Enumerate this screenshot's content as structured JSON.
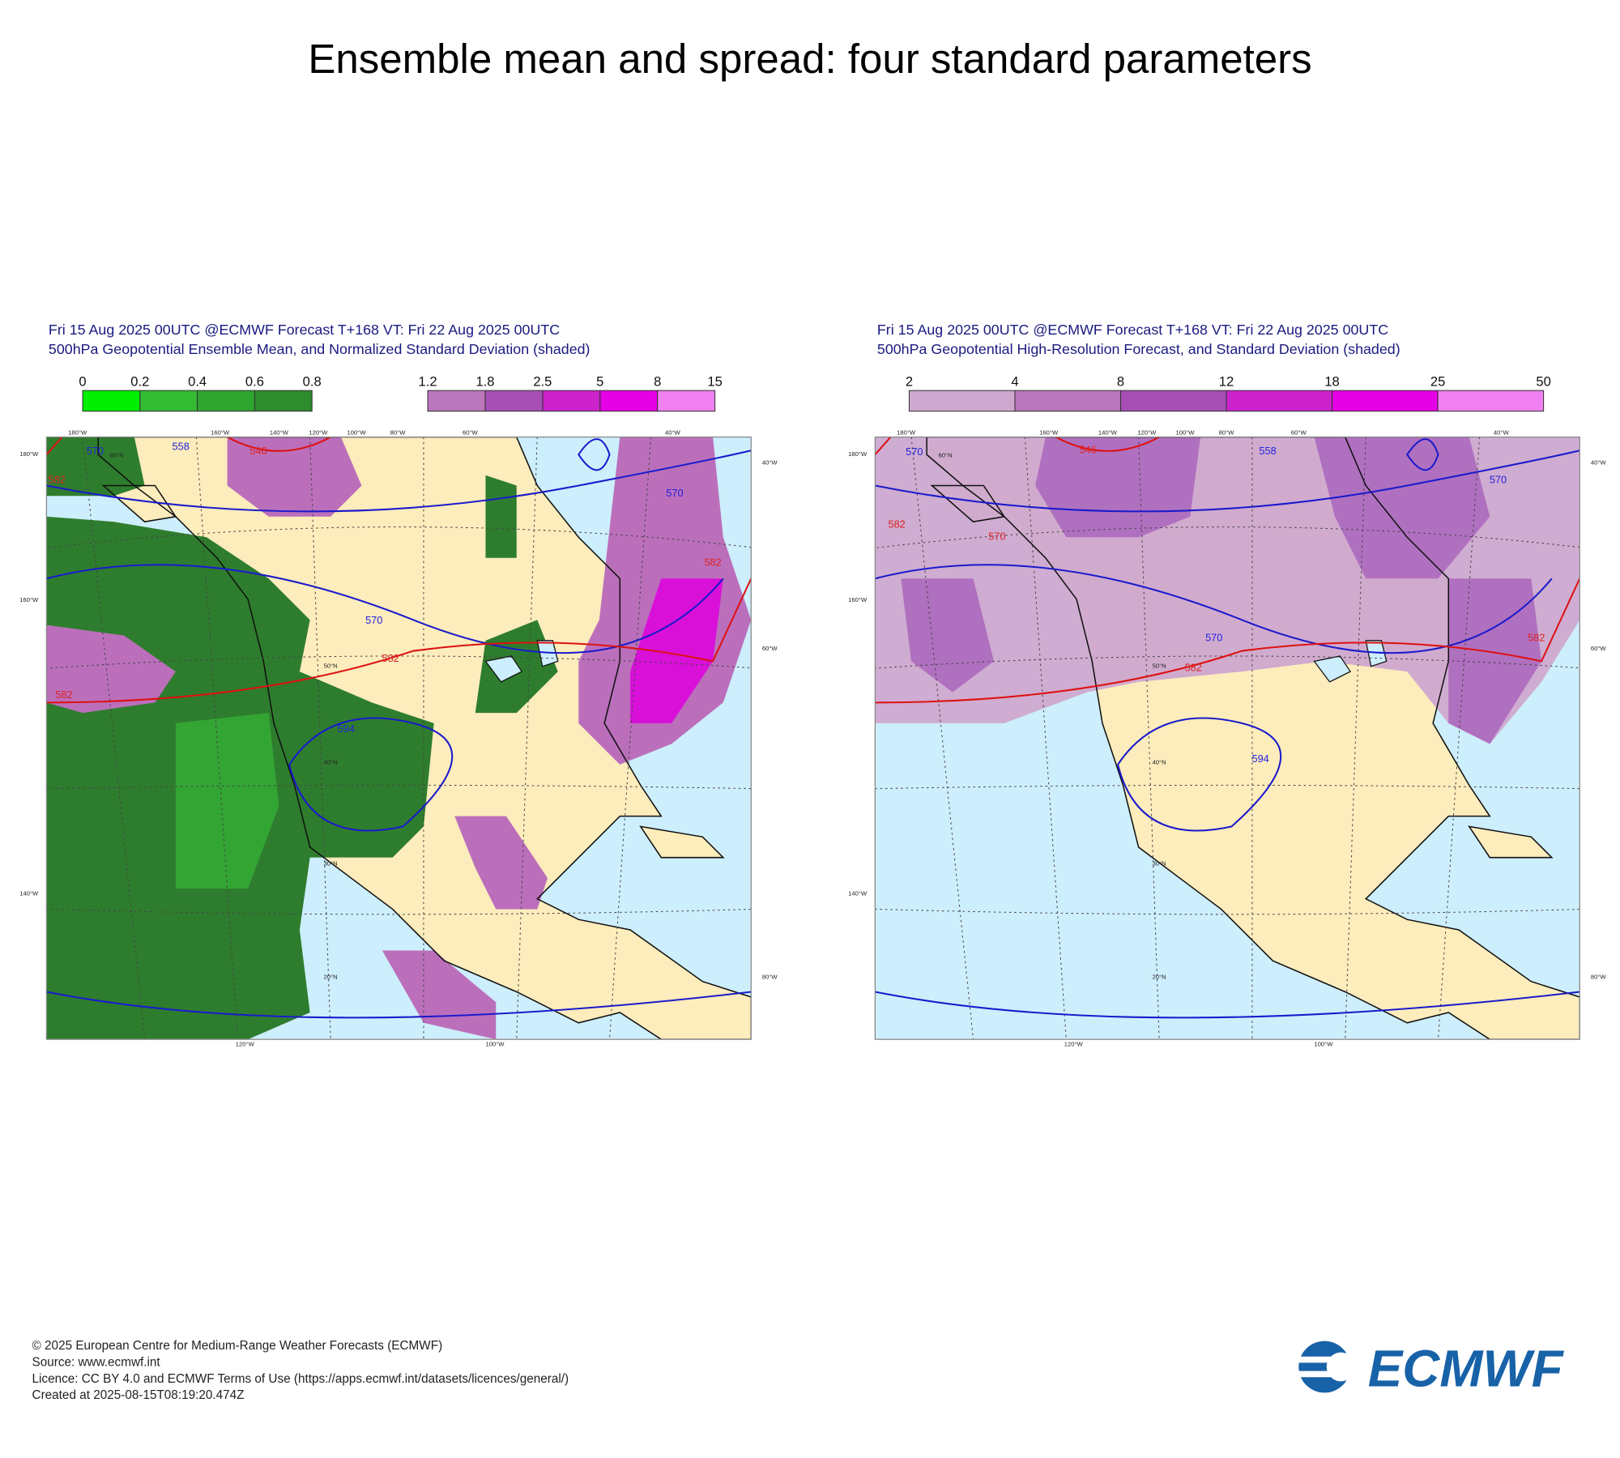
{
  "title": "Ensemble mean and spread: four standard parameters",
  "panels": [
    {
      "header": [
        "Fri 15 Aug 2025 00UTC @ECMWF Forecast T+168 VT: Fri 22 Aug 2025 00UTC",
        "500hPa Geopotential Ensemble Mean, and Normalized Standard Deviation (shaded)"
      ],
      "colorbars": [
        {
          "labels": [
            "0",
            "0.2",
            "0.4",
            "0.6",
            "0.8"
          ],
          "colors": [
            "#00ee00",
            "#33bb33",
            "#2ea52e",
            "#2e8b2e"
          ]
        },
        {
          "labels": [
            "1.2",
            "1.8",
            "2.5",
            "5",
            "8",
            "15"
          ],
          "colors": [
            "#bb77bb",
            "#a54fb5",
            "#cc22cc",
            "#e600e6",
            "#f080f0"
          ]
        }
      ],
      "contour_labels": [
        "570",
        "546",
        "582",
        "582",
        "570",
        "570",
        "582",
        "594",
        "582",
        "558"
      ],
      "grid_labels": [
        "180°W",
        "160°W",
        "140°W",
        "120°W",
        "100°W",
        "80°W",
        "60°W",
        "40°W",
        "180°W",
        "160°W",
        "140°W",
        "40°W",
        "60°W",
        "80°W",
        "120°W",
        "100°W",
        "60°N",
        "50°N",
        "40°N",
        "30°N",
        "20°N"
      ]
    },
    {
      "header": [
        "Fri 15 Aug 2025 00UTC @ECMWF Forecast T+168 VT: Fri 22 Aug 2025 00UTC",
        "500hPa Geopotential High-Resolution Forecast, and Standard Deviation (shaded)"
      ],
      "colorbars": [
        {
          "labels": [
            "2",
            "4",
            "8",
            "12",
            "18",
            "25",
            "50"
          ],
          "colors": [
            "#cfa8cf",
            "#bb77bb",
            "#a54fb5",
            "#cc22cc",
            "#e600e6",
            "#f080f0"
          ]
        }
      ],
      "contour_labels": [
        "570",
        "546",
        "582",
        "570",
        "570",
        "570",
        "582",
        "594",
        "582",
        "558"
      ],
      "grid_labels": [
        "180°W",
        "160°W",
        "140°W",
        "120°W",
        "100°W",
        "80°W",
        "60°W",
        "40°W",
        "180°W",
        "160°W",
        "140°W",
        "40°W",
        "60°W",
        "80°W",
        "120°W",
        "100°W",
        "60°N",
        "50°N",
        "40°N",
        "30°N",
        "20°N"
      ]
    }
  ],
  "footer": [
    "© 2025 European Centre for Medium-Range Weather Forecasts (ECMWF)",
    "Source: www.ecmwf.int",
    "Licence: CC BY 4.0 and ECMWF Terms of Use (https://apps.ecmwf.int/datasets/licences/general/)",
    "Created at 2025-08-15T08:19:20.474Z"
  ],
  "logo": "ECMWF"
}
